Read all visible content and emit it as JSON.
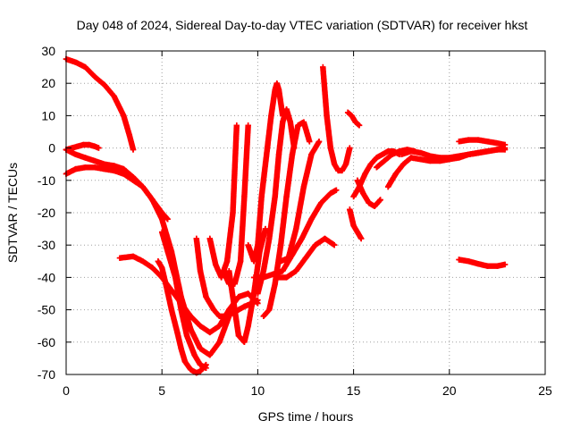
{
  "chart_data": {
    "type": "scatter",
    "title": "Day 048 of 2024, Sidereal Day-to-day VTEC variation (SDTVAR) for receiver hkst",
    "xlabel": "GPS time / hours",
    "ylabel": "SDTVAR / TECUs",
    "xlim": [
      0,
      25
    ],
    "ylim": [
      -70,
      30
    ],
    "xticks": [
      0,
      5,
      10,
      15,
      20,
      25
    ],
    "yticks": [
      -70,
      -60,
      -50,
      -40,
      -30,
      -20,
      -10,
      0,
      10,
      20,
      30
    ],
    "grid": true,
    "marker": "plus",
    "color": "#ff0000",
    "series": [
      {
        "name": "arc-a",
        "x": [
          0,
          0.5,
          1,
          1.5,
          2,
          2.5,
          3,
          3.3,
          3.5
        ],
        "y": [
          27.5,
          26.5,
          25,
          22,
          19.5,
          16,
          10,
          4,
          -0.5
        ]
      },
      {
        "name": "arc-b",
        "x": [
          0,
          0.3,
          0.6,
          0.9,
          1.2,
          1.5,
          1.7
        ],
        "y": [
          -0.5,
          0,
          0.5,
          1,
          1,
          0.5,
          0
        ]
      },
      {
        "name": "arc-c",
        "x": [
          0,
          0.5,
          1,
          1.5,
          2,
          2.5,
          3,
          3.5,
          4,
          4.5,
          5,
          5.3
        ],
        "y": [
          -8,
          -6.5,
          -6,
          -6,
          -6.5,
          -7,
          -8,
          -10,
          -12,
          -16,
          -20,
          -22
        ]
      },
      {
        "name": "arc-d",
        "x": [
          0,
          0.5,
          1,
          1.5,
          2,
          2.5,
          3,
          3.5,
          4,
          4.5,
          5,
          5.5,
          6,
          6.5,
          7,
          7.5,
          8,
          8.5
        ],
        "y": [
          -0.5,
          -2,
          -3,
          -4,
          -5,
          -5.5,
          -6.5,
          -9,
          -12,
          -16,
          -22,
          -32,
          -46,
          -56,
          -62,
          -64,
          -60,
          -52
        ]
      },
      {
        "name": "arc-e",
        "x": [
          2.8,
          3.5,
          4,
          4.5,
          5,
          5.5,
          6,
          6.5,
          7,
          7.5,
          8,
          8.5,
          9,
          9.5,
          10
        ],
        "y": [
          -34,
          -33.5,
          -35,
          -37,
          -40,
          -44,
          -48,
          -52,
          -55,
          -57,
          -55,
          -50,
          -46,
          -45,
          -48
        ]
      },
      {
        "name": "arc-f",
        "x": [
          4.8,
          5,
          5.2,
          5.5,
          5.8,
          6,
          6.2,
          6.5,
          6.8,
          7,
          7.3
        ],
        "y": [
          -35,
          -37,
          -42,
          -50,
          -57,
          -62,
          -66,
          -68.5,
          -69.5,
          -69,
          -67
        ]
      },
      {
        "name": "arc-g",
        "x": [
          5,
          5.3,
          5.7,
          6,
          6.3,
          6.7,
          7,
          7.3
        ],
        "y": [
          -26,
          -32,
          -40,
          -50,
          -58,
          -64,
          -67,
          -68
        ]
      },
      {
        "name": "arc-h",
        "x": [
          6.8,
          7,
          7.3,
          7.7,
          8,
          8.3,
          8.7,
          9,
          9.3,
          9.7,
          10
        ],
        "y": [
          -28,
          -38,
          -46,
          -50,
          -52,
          -52,
          -51,
          -50,
          -49,
          -48,
          -47
        ]
      },
      {
        "name": "arc-i",
        "x": [
          7.5,
          7.8,
          8.1,
          8.4,
          8.7,
          8.9
        ],
        "y": [
          -28,
          -36,
          -40,
          -35,
          -20,
          7
        ]
      },
      {
        "name": "arc-j",
        "x": [
          8.2,
          8.5,
          8.8,
          9.1,
          9.3,
          9.5
        ],
        "y": [
          -38,
          -42,
          -42,
          -35,
          -15,
          7
        ]
      },
      {
        "name": "arc-k",
        "x": [
          8.5,
          8.8,
          9,
          9.3,
          9.5,
          9.8,
          10.1,
          10.4
        ],
        "y": [
          -38,
          -50,
          -58,
          -60,
          -55,
          -45,
          -32,
          -25
        ]
      },
      {
        "name": "arc-l",
        "x": [
          9.5,
          9.8,
          10,
          10.2,
          10.5,
          10.7,
          10.9,
          11,
          11.1,
          11.3
        ],
        "y": [
          -30,
          -35,
          -30,
          -15,
          0,
          10,
          18,
          20,
          18,
          10
        ]
      },
      {
        "name": "arc-m",
        "x": [
          10,
          10.3,
          10.6,
          10.9,
          11.1,
          11.3,
          11.5,
          11.7,
          11.9
        ],
        "y": [
          -45,
          -38,
          -28,
          -15,
          -2,
          8,
          12,
          8,
          0
        ]
      },
      {
        "name": "arc-n",
        "x": [
          10.3,
          10.6,
          10.9,
          11.2,
          11.5,
          11.8,
          12.1,
          12.4,
          12.7
        ],
        "y": [
          -52,
          -50,
          -42,
          -30,
          -15,
          -2,
          7,
          8,
          2
        ]
      },
      {
        "name": "arc-o",
        "x": [
          9.8,
          10.3,
          10.8,
          11.3,
          11.8,
          12.3,
          12.8,
          13.3,
          13.8,
          14.1
        ],
        "y": [
          -40,
          -40,
          -39,
          -38,
          -33,
          -28,
          -22,
          -17,
          -14,
          -13
        ]
      },
      {
        "name": "arc-p",
        "x": [
          11,
          11.5,
          12,
          12.5,
          13,
          13.5,
          14
        ],
        "y": [
          -40,
          -40,
          -38,
          -34,
          -30,
          -28,
          -30
        ]
      },
      {
        "name": "arc-q",
        "x": [
          11.2,
          11.6,
          12,
          12.4,
          12.8,
          13.2
        ],
        "y": [
          -35,
          -34,
          -25,
          -12,
          -2,
          2
        ]
      },
      {
        "name": "arc-r",
        "x": [
          13.4,
          13.6,
          13.8,
          14,
          14.2,
          14.4,
          14.6,
          14.8
        ],
        "y": [
          25,
          10,
          0,
          -5,
          -7,
          -7,
          -5,
          0
        ]
      },
      {
        "name": "arc-s",
        "x": [
          14.7,
          14.9,
          15.1,
          15.3
        ],
        "y": [
          11,
          10,
          8,
          7
        ]
      },
      {
        "name": "arc-t",
        "x": [
          14.8,
          15,
          15.2,
          15.4
        ],
        "y": [
          -19,
          -24,
          -26,
          -28
        ]
      },
      {
        "name": "arc-u",
        "x": [
          15,
          15.3,
          15.6,
          15.9,
          16.2,
          16.5,
          16.8,
          17.1,
          17.4
        ],
        "y": [
          -15,
          -12,
          -8,
          -5,
          -3,
          -2,
          -1,
          -1,
          -2
        ]
      },
      {
        "name": "arc-v",
        "x": [
          15.2,
          15.5,
          15.8,
          16.1,
          16.4
        ],
        "y": [
          -10,
          -14,
          -17,
          -18,
          -16
        ]
      },
      {
        "name": "arc-w",
        "x": [
          16.2,
          16.6,
          17,
          17.4,
          17.8,
          18.2
        ],
        "y": [
          -6,
          -4,
          -2,
          -1,
          -0.5,
          -1
        ]
      },
      {
        "name": "arc-x",
        "x": [
          16.8,
          17.2,
          17.6,
          18,
          18.5,
          19,
          19.5,
          20,
          20.5,
          21,
          21.5,
          22,
          22.5,
          22.9
        ],
        "y": [
          -12,
          -8,
          -5,
          -3,
          -3.5,
          -4,
          -4,
          -3.5,
          -3,
          -2,
          -1.5,
          -1,
          -0.5,
          0
        ]
      },
      {
        "name": "arc-y",
        "x": [
          17.5,
          18,
          18.5,
          19,
          19.5,
          20,
          20.5,
          21,
          21.5,
          22,
          22.5,
          22.9
        ],
        "y": [
          -2,
          -1,
          -1.5,
          -2.5,
          -3,
          -3,
          -2.5,
          -2,
          -1.5,
          -1,
          -0.5,
          -0.5
        ]
      },
      {
        "name": "arc-z",
        "x": [
          20.5,
          21,
          21.5,
          22,
          22.5,
          22.9
        ],
        "y": [
          2,
          2.5,
          2.5,
          2,
          1.5,
          1
        ]
      },
      {
        "name": "arc-aa",
        "x": [
          20.5,
          21,
          21.5,
          22,
          22.5,
          22.9
        ],
        "y": [
          -34.5,
          -35,
          -35.8,
          -36.5,
          -36.5,
          -36
        ]
      }
    ]
  }
}
